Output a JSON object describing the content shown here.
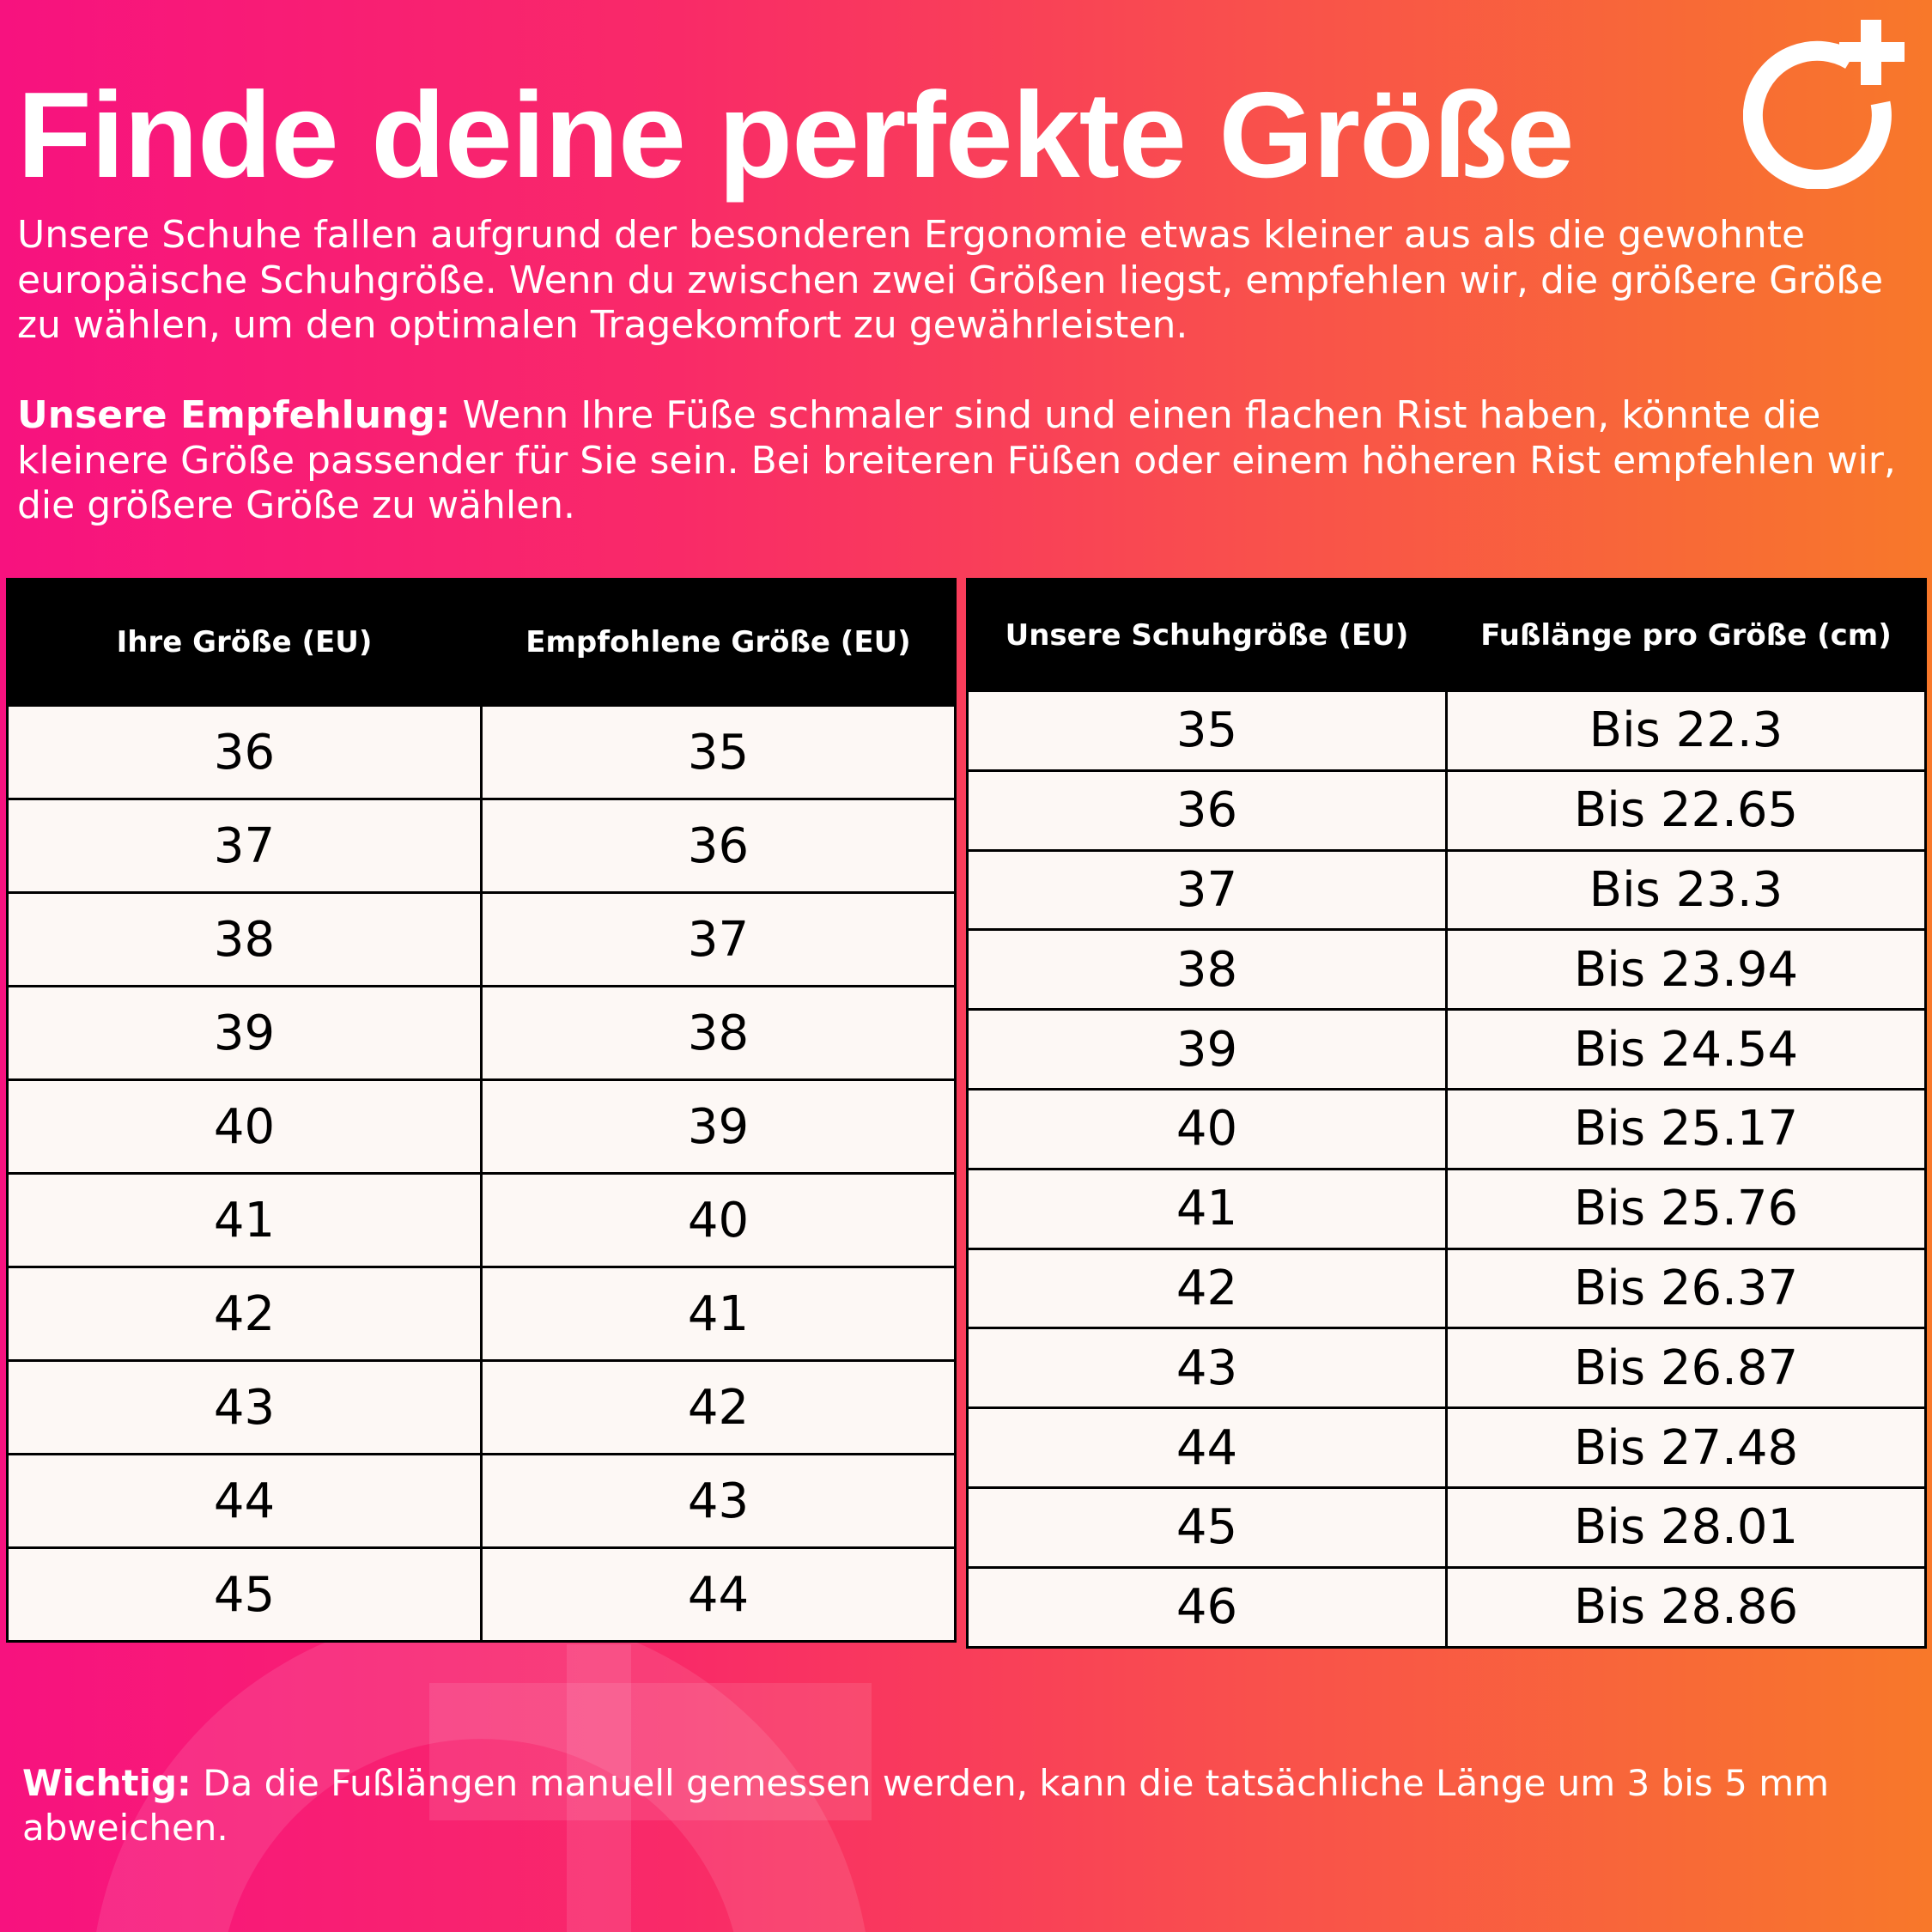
{
  "title": "Finde deine perfekte Größe",
  "intro": "Unsere Schuhe fallen aufgrund der besonderen Ergonomie etwas kleiner aus als die gewohnte europäische Schuhgröße. Wenn du zwischen zwei Größen liegst, empfehlen wir, die größere Größe zu wählen, um den optimalen Tragekomfort zu gewährleisten.",
  "recommendation": {
    "label": "Unsere Empfehlung:",
    "text": " Wenn Ihre Füße schmaler sind und einen flachen Rist haben, könnte die kleinere Größe passender für Sie sein. Bei breiteren Füßen oder einem höheren Rist empfehlen wir, die größere Größe zu wählen."
  },
  "conversion_table": {
    "headers": [
      "Ihre Größe (EU)",
      "Empfohlene Größe (EU)"
    ],
    "rows": [
      [
        "36",
        "35"
      ],
      [
        "37",
        "36"
      ],
      [
        "38",
        "37"
      ],
      [
        "39",
        "38"
      ],
      [
        "40",
        "39"
      ],
      [
        "41",
        "40"
      ],
      [
        "42",
        "41"
      ],
      [
        "43",
        "42"
      ],
      [
        "44",
        "43"
      ],
      [
        "45",
        "44"
      ]
    ]
  },
  "length_table": {
    "headers": [
      "Unsere Schuhgröße (EU)",
      "Fußlänge pro Größe (cm)"
    ],
    "rows": [
      [
        "35",
        "Bis 22.3"
      ],
      [
        "36",
        "Bis 22.65"
      ],
      [
        "37",
        "Bis 23.3"
      ],
      [
        "38",
        "Bis 23.94"
      ],
      [
        "39",
        "Bis 24.54"
      ],
      [
        "40",
        "Bis 25.17"
      ],
      [
        "41",
        "Bis 25.76"
      ],
      [
        "42",
        "Bis 26.37"
      ],
      [
        "43",
        "Bis 26.87"
      ],
      [
        "44",
        "Bis 27.48"
      ],
      [
        "45",
        "Bis 28.01"
      ],
      [
        "46",
        "Bis 28.86"
      ]
    ]
  },
  "footer": {
    "label": "Wichtig:",
    "text": " Da die Fußlängen manuell gemessen werden, kann die tatsächliche Länge um 3 bis 5 mm abweichen."
  },
  "colors": {
    "gradient_start": "#f7127f",
    "gradient_end": "#f8782a",
    "header_bg": "#000000",
    "cell_bg": "#fdf8f5"
  },
  "icons": {
    "logo": "ring-plus-logo",
    "watermark": "ring-plus-watermark"
  }
}
